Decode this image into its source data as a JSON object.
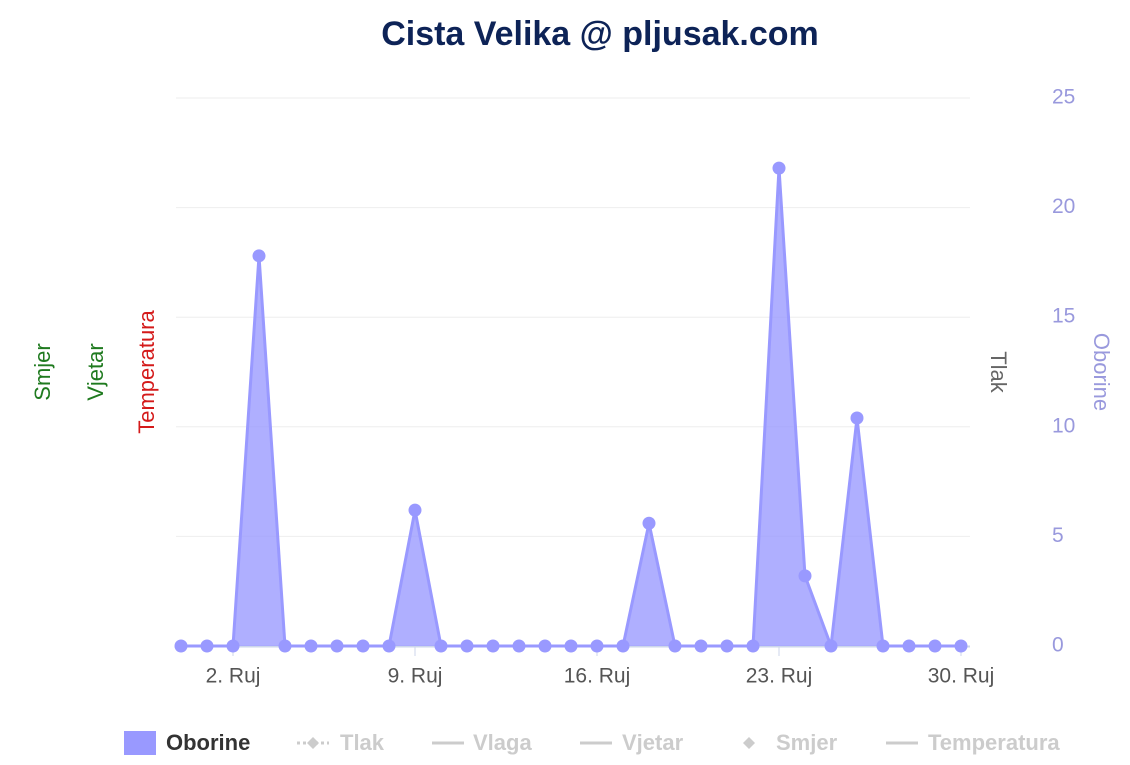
{
  "chart_data": {
    "type": "area",
    "title": "Cista Velika @ pljusak.com",
    "categories": [
      null,
      null,
      "2. Ruj",
      null,
      null,
      null,
      null,
      null,
      null,
      "9. Ruj",
      null,
      null,
      null,
      null,
      null,
      null,
      "16. Ruj",
      null,
      null,
      null,
      null,
      null,
      null,
      "23. Ruj",
      null,
      null,
      null,
      null,
      null,
      null,
      "30. Ruj"
    ],
    "series": [
      {
        "name": "Oborine",
        "color": "#9999ff",
        "values": [
          0,
          0,
          0,
          17.8,
          0,
          0,
          0,
          0,
          0,
          6.2,
          0,
          0,
          0,
          0,
          0,
          0,
          0,
          0,
          5.6,
          0,
          0,
          0,
          0,
          21.8,
          3.2,
          0,
          10.4,
          0,
          0,
          0,
          0
        ]
      }
    ],
    "ylim": [
      0,
      25
    ],
    "yticks": [
      0,
      5,
      10,
      15,
      20,
      25
    ],
    "y_axis_title": "Oborine",
    "other_axis_titles": [
      {
        "text": "Smjer",
        "color": "#1f7a1f"
      },
      {
        "text": "Vjetar",
        "color": "#1f7a1f"
      },
      {
        "text": "Temperatura",
        "color": "#d41a1a"
      },
      {
        "text": "Tlak",
        "color": "#666666"
      }
    ],
    "hidden_legend_items": [
      "Tlak",
      "Vlaga",
      "Vjetar",
      "Smjer",
      "Temperatura"
    ],
    "grid": true
  }
}
